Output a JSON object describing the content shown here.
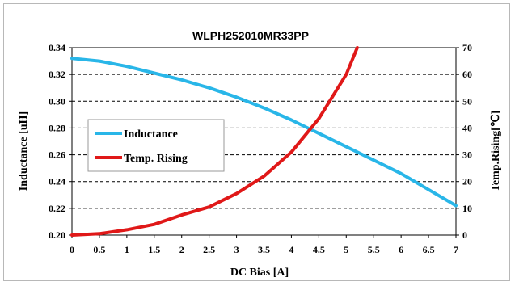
{
  "chart_data": {
    "type": "line",
    "title": "WLPH252010MR33PP",
    "xlabel": "DC Bias [A]",
    "ylabel": "Inductance [uH]",
    "y2label": "Temp.Rising[℃]",
    "xlim": [
      0,
      7
    ],
    "ylim": [
      0.2,
      0.34
    ],
    "y2lim": [
      0,
      70
    ],
    "x_ticks": [
      "0",
      "0.5",
      "1",
      "1.5",
      "2",
      "2.5",
      "3",
      "3.5",
      "4",
      "4.5",
      "5",
      "5.5",
      "6",
      "6.5",
      "7"
    ],
    "y_ticks": [
      "0.20",
      "0.22",
      "0.24",
      "0.26",
      "0.28",
      "0.30",
      "0.32",
      "0.34"
    ],
    "y2_ticks": [
      "0",
      "10",
      "20",
      "30",
      "40",
      "50",
      "60",
      "70"
    ],
    "grid": "horizontal dashed",
    "legend_placement": "center-left",
    "series": [
      {
        "name": "Inductance",
        "axis": "left",
        "color": "#29b6e8",
        "x": [
          0,
          0.5,
          1,
          1.5,
          2,
          2.5,
          3,
          3.5,
          4,
          4.5,
          5,
          5.5,
          6,
          6.5,
          7
        ],
        "values": [
          0.332,
          0.33,
          0.326,
          0.321,
          0.316,
          0.31,
          0.303,
          0.295,
          0.286,
          0.276,
          0.266,
          0.256,
          0.246,
          0.234,
          0.222
        ]
      },
      {
        "name": "Temp. Rising",
        "axis": "right",
        "color": "#e01818",
        "x": [
          0,
          0.5,
          1,
          1.5,
          2,
          2.5,
          3,
          3.5,
          4,
          4.5,
          5,
          5.2
        ],
        "values": [
          0,
          0.5,
          2,
          4,
          7.5,
          10.5,
          15.5,
          22,
          31,
          43.5,
          60,
          70
        ]
      }
    ]
  }
}
